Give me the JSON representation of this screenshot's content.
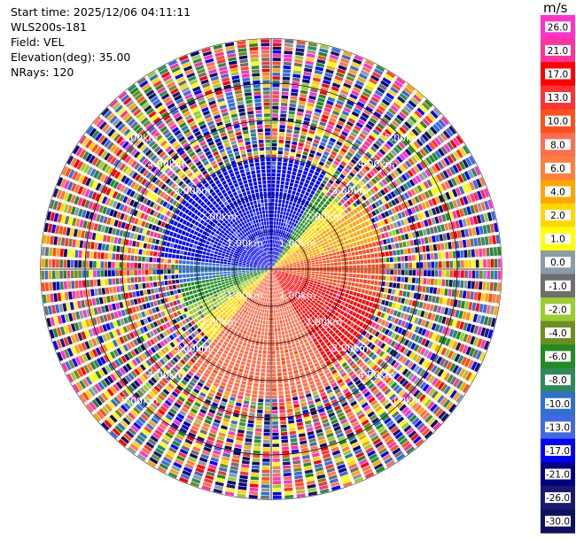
{
  "header": {
    "start_time": "Start time: 2025/12/06 04:11:11",
    "instrument": "WLS200s-181",
    "field": "Field: VEL",
    "elevation": "Elevation(deg): 35.00",
    "nrays": "NRays: 120"
  },
  "chart_data": {
    "type": "heatmap",
    "projection": "polar",
    "field": "VEL",
    "units": "m/s",
    "elevation_deg": 35.0,
    "n_rays": 120,
    "range_rings_km": [
      1.0,
      2.0,
      3.0,
      4.0,
      5.0
    ],
    "range_ring_labels": [
      "1.00km",
      "2.00km",
      "3.00km",
      "4.00km",
      "5.00km"
    ],
    "max_range_km": 6.2,
    "colorbar": {
      "label": "m/s",
      "tick_labels": [
        "26.0",
        "21.0",
        "17.0",
        "13.0",
        "10.0",
        "8.0",
        "6.0",
        "4.0",
        "2.0",
        "1.0",
        "0.0",
        "-1.0",
        "-2.0",
        "-4.0",
        "-6.0",
        "-8.0",
        "-10.0",
        "-13.0",
        "-17.0",
        "-21.0",
        "-26.0",
        "-30.0"
      ],
      "colors": [
        "#ff33cc",
        "#ff3399",
        "#ff0000",
        "#ff3333",
        "#ff4f1a",
        "#ff6f4f",
        "#ff7f3f",
        "#ffa500",
        "#ffd700",
        "#ffff00",
        "#8c9ba8",
        "#6e6e6e",
        "#9acd32",
        "#6b8e23",
        "#228b22",
        "#2e8b57",
        "#2f6fcf",
        "#4169e1",
        "#0000ff",
        "#000080",
        "#191970",
        "#101060"
      ]
    }
  }
}
